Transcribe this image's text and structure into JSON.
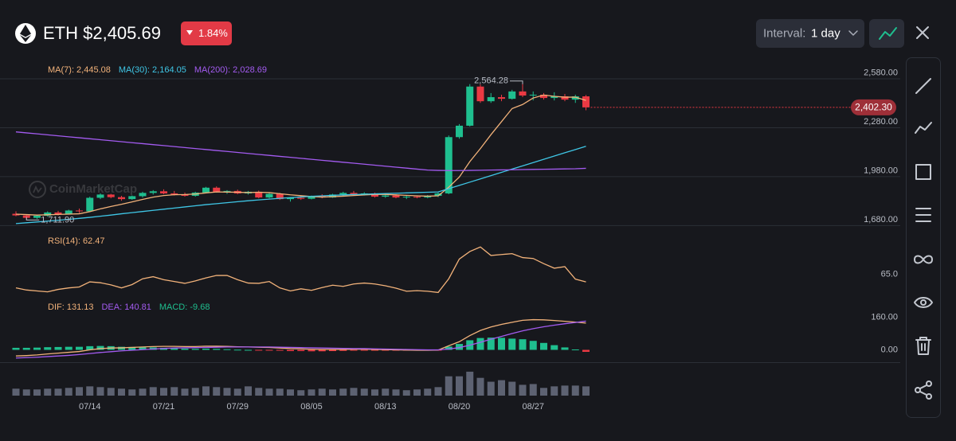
{
  "header": {
    "title": "ETH $2,405.69",
    "change": "1.84%",
    "interval_label": "Interval:",
    "interval_value": "1 day"
  },
  "chart_data": [
    {
      "type": "candlestick",
      "watermark": "CoinMarketCap",
      "up_color": "#1fbf8f",
      "down_color": "#ea3943",
      "grid": true,
      "ylim": [
        1660,
        2680
      ],
      "yticks": [
        {
          "value": 1680,
          "label": "1,680.00"
        },
        {
          "value": 1980,
          "label": "1,980.00"
        },
        {
          "value": 2280,
          "label": "2,280.00"
        },
        {
          "value": 2580,
          "label": "2,580.00"
        }
      ],
      "high_label": "2,564.28",
      "low_label": "1,711.90",
      "last_price": 2402.3,
      "last_price_label": "2,402.30",
      "open": [
        1750,
        1740,
        1725,
        1738,
        1758,
        1748,
        1770,
        1765,
        1848,
        1868,
        1852,
        1840,
        1858,
        1878,
        1888,
        1875,
        1868,
        1860,
        1880,
        1910,
        1885,
        1890,
        1875,
        1885,
        1850,
        1872,
        1840,
        1848,
        1842,
        1858,
        1850,
        1868,
        1878,
        1870,
        1875,
        1855,
        1862,
        1850,
        1855,
        1850,
        1860,
        1875,
        2220,
        2290,
        2530,
        2440,
        2465,
        2455,
        2500,
        2475,
        2480,
        2460,
        2470,
        2450,
        2470
      ],
      "high": [
        1765,
        1748,
        1745,
        1765,
        1768,
        1775,
        1782,
        1855,
        1875,
        1872,
        1860,
        1862,
        1885,
        1895,
        1900,
        1890,
        1880,
        1885,
        1915,
        1918,
        1895,
        1898,
        1890,
        1892,
        1880,
        1878,
        1852,
        1860,
        1862,
        1870,
        1872,
        1885,
        1890,
        1882,
        1880,
        1868,
        1870,
        1860,
        1862,
        1865,
        1880,
        2230,
        2300,
        2545,
        2542,
        2490,
        2480,
        2510,
        2564.28,
        2500,
        2490,
        2495,
        2485,
        2480,
        2478
      ],
      "low": [
        1735,
        1711.9,
        1718,
        1732,
        1740,
        1745,
        1755,
        1760,
        1840,
        1845,
        1830,
        1835,
        1850,
        1868,
        1870,
        1862,
        1855,
        1855,
        1875,
        1880,
        1872,
        1870,
        1868,
        1845,
        1845,
        1835,
        1825,
        1835,
        1838,
        1845,
        1848,
        1860,
        1865,
        1862,
        1850,
        1848,
        1845,
        1840,
        1845,
        1845,
        1852,
        1870,
        2210,
        2285,
        2430,
        2430,
        2440,
        2450,
        2465,
        2445,
        2450,
        2445,
        2440,
        2430,
        2385
      ],
      "close": [
        1740,
        1725,
        1738,
        1758,
        1748,
        1770,
        1765,
        1848,
        1868,
        1852,
        1840,
        1858,
        1878,
        1888,
        1875,
        1868,
        1860,
        1880,
        1910,
        1885,
        1890,
        1875,
        1885,
        1850,
        1872,
        1840,
        1848,
        1842,
        1858,
        1850,
        1868,
        1878,
        1870,
        1875,
        1855,
        1862,
        1850,
        1855,
        1850,
        1860,
        1875,
        2220,
        2290,
        2530,
        2440,
        2465,
        2455,
        2500,
        2475,
        2480,
        2460,
        2470,
        2450,
        2470,
        2402.3
      ],
      "series": [
        {
          "name": "MA(7): 2,445.08",
          "color": "#f2b27a",
          "values": [
            1748,
            1745,
            1742,
            1744,
            1746,
            1748,
            1750,
            1763,
            1780,
            1795,
            1808,
            1823,
            1838,
            1852,
            1862,
            1867,
            1868,
            1871,
            1878,
            1884,
            1883,
            1882,
            1880,
            1882,
            1880,
            1873,
            1866,
            1861,
            1856,
            1852,
            1855,
            1858,
            1862,
            1866,
            1869,
            1869,
            1866,
            1863,
            1860,
            1858,
            1860,
            1913,
            1975,
            2070,
            2150,
            2235,
            2315,
            2395,
            2420,
            2460,
            2478,
            2470,
            2465,
            2465,
            2445.08
          ]
        },
        {
          "name": "MA(30): 2,164.05",
          "color": "#3fc6e6",
          "values": [
            1690,
            1695,
            1700,
            1705,
            1710,
            1716,
            1722,
            1728,
            1735,
            1742,
            1750,
            1757,
            1764,
            1771,
            1778,
            1785,
            1792,
            1799,
            1806,
            1812,
            1818,
            1824,
            1830,
            1835,
            1840,
            1845,
            1849,
            1853,
            1857,
            1860,
            1863,
            1866,
            1868,
            1870,
            1872,
            1874,
            1876,
            1878,
            1880,
            1882,
            1884,
            1904,
            1924,
            1944,
            1964,
            1984,
            2004,
            2024,
            2044,
            2064,
            2084,
            2104,
            2124,
            2144,
            2164.05
          ]
        },
        {
          "name": "MA(200): 2,028.69",
          "color": "#a35bf0",
          "values": [
            2252,
            2246,
            2240,
            2234,
            2228,
            2222,
            2216,
            2210,
            2204,
            2198,
            2192,
            2186,
            2180,
            2174,
            2168,
            2162,
            2156,
            2150,
            2144,
            2138,
            2132,
            2126,
            2120,
            2114,
            2108,
            2102,
            2096,
            2090,
            2084,
            2078,
            2072,
            2066,
            2060,
            2054,
            2048,
            2042,
            2036,
            2030,
            2024,
            2018,
            2016,
            2015,
            2015,
            2016,
            2017,
            2018,
            2019,
            2020,
            2021,
            2022,
            2023,
            2024,
            2025,
            2026,
            2028.69
          ]
        }
      ]
    },
    {
      "type": "line",
      "ylim": [
        57,
        78
      ],
      "yticks": [
        {
          "value": 65,
          "label": "65.0"
        }
      ],
      "series": [
        {
          "name": "RSI(14): 62.47",
          "color": "#f2b27a",
          "values": [
            60.5,
            59.8,
            59.5,
            59.2,
            60,
            60.5,
            60.8,
            62.5,
            62.2,
            61.5,
            60.5,
            61.6,
            63.5,
            64.2,
            63.2,
            62.6,
            62.0,
            62.8,
            63.8,
            64.6,
            64.6,
            63.2,
            62.1,
            62.0,
            62.6,
            60.5,
            59.5,
            60.2,
            59.7,
            60.6,
            61.4,
            61.0,
            61.8,
            62.1,
            61.8,
            61.2,
            60.4,
            59.4,
            59.6,
            59.4,
            59.0,
            63.5,
            70.0,
            72.5,
            74.0,
            71.2,
            71.5,
            71.8,
            70.5,
            70.2,
            68.5,
            67.0,
            67.5,
            63.4,
            62.47
          ]
        }
      ]
    },
    {
      "type": "macd",
      "ylim": [
        -80,
        240
      ],
      "yticks": [
        {
          "value": 0,
          "label": "0.00"
        },
        {
          "value": 160,
          "label": "160.00"
        }
      ],
      "series": [
        {
          "name": "DIF: 131.13",
          "color": "#f2b27a",
          "values": [
            -30,
            -28,
            -25,
            -20,
            -16,
            -12,
            -8,
            0,
            6,
            9,
            10,
            12,
            14,
            16,
            17,
            17,
            16,
            16,
            18,
            18,
            17,
            15,
            14,
            13,
            12,
            9,
            6,
            5,
            3,
            2,
            2,
            2,
            3,
            3,
            2,
            1,
            0,
            -1,
            -2,
            -2,
            -1,
            20,
            40,
            70,
            95,
            112,
            125,
            135,
            145,
            148,
            147,
            144,
            140,
            136,
            131.13
          ]
        },
        {
          "name": "DEA: 140.81",
          "color": "#a35bf0",
          "values": [
            -40,
            -38,
            -36,
            -33,
            -30,
            -27,
            -23,
            -18,
            -13,
            -9,
            -5,
            -2,
            1,
            4,
            7,
            9,
            10,
            11,
            12,
            13,
            14,
            14,
            14,
            14,
            14,
            13,
            12,
            11,
            10,
            9,
            8,
            7,
            6,
            6,
            5,
            4,
            3,
            2,
            1,
            0,
            0,
            4,
            11,
            23,
            37,
            52,
            66,
            80,
            93,
            104,
            113,
            121,
            128,
            134,
            140.81
          ]
        }
      ],
      "histogram": {
        "name": "MACD: -9.68",
        "up_color": "#1fbf8f",
        "down_color": "#ea3943",
        "values": [
          10,
          10,
          11,
          13,
          14,
          15,
          15,
          18,
          19,
          18,
          15,
          14,
          13,
          12,
          10,
          8,
          6,
          5,
          6,
          5,
          3,
          1,
          0,
          -1,
          -2,
          -4,
          -6,
          -6,
          -7,
          -7,
          -6,
          -5,
          -3,
          -3,
          -3,
          -3,
          -3,
          -3,
          -3,
          -2,
          -1,
          16,
          29,
          47,
          58,
          60,
          59,
          55,
          52,
          44,
          34,
          23,
          12,
          2,
          -9.68
        ]
      }
    },
    {
      "type": "bar",
      "color": "#5d6272",
      "ylim": [
        0,
        34
      ],
      "categories": [
        null,
        null,
        null,
        null,
        null,
        null,
        null,
        "07/14",
        null,
        null,
        null,
        null,
        null,
        null,
        "07/21",
        null,
        null,
        null,
        null,
        null,
        null,
        "07/29",
        null,
        null,
        null,
        null,
        null,
        null,
        "08/05",
        null,
        null,
        null,
        null,
        null,
        null,
        "08/13",
        null,
        null,
        null,
        null,
        null,
        null,
        "08/20",
        null,
        null,
        null,
        null,
        null,
        null,
        "08/27",
        null,
        null,
        null,
        null,
        null
      ],
      "values": [
        9,
        8,
        8,
        9,
        9,
        10,
        11,
        12,
        11,
        10,
        9,
        8,
        9,
        11,
        10,
        11,
        9,
        10,
        12,
        11,
        10,
        9,
        12,
        10,
        9,
        9,
        8,
        7,
        8,
        9,
        8,
        9,
        10,
        9,
        8,
        9,
        8,
        7,
        8,
        9,
        11,
        25,
        25,
        31,
        23,
        18,
        20,
        18,
        14,
        15,
        10,
        12,
        13,
        13,
        12
      ]
    }
  ]
}
